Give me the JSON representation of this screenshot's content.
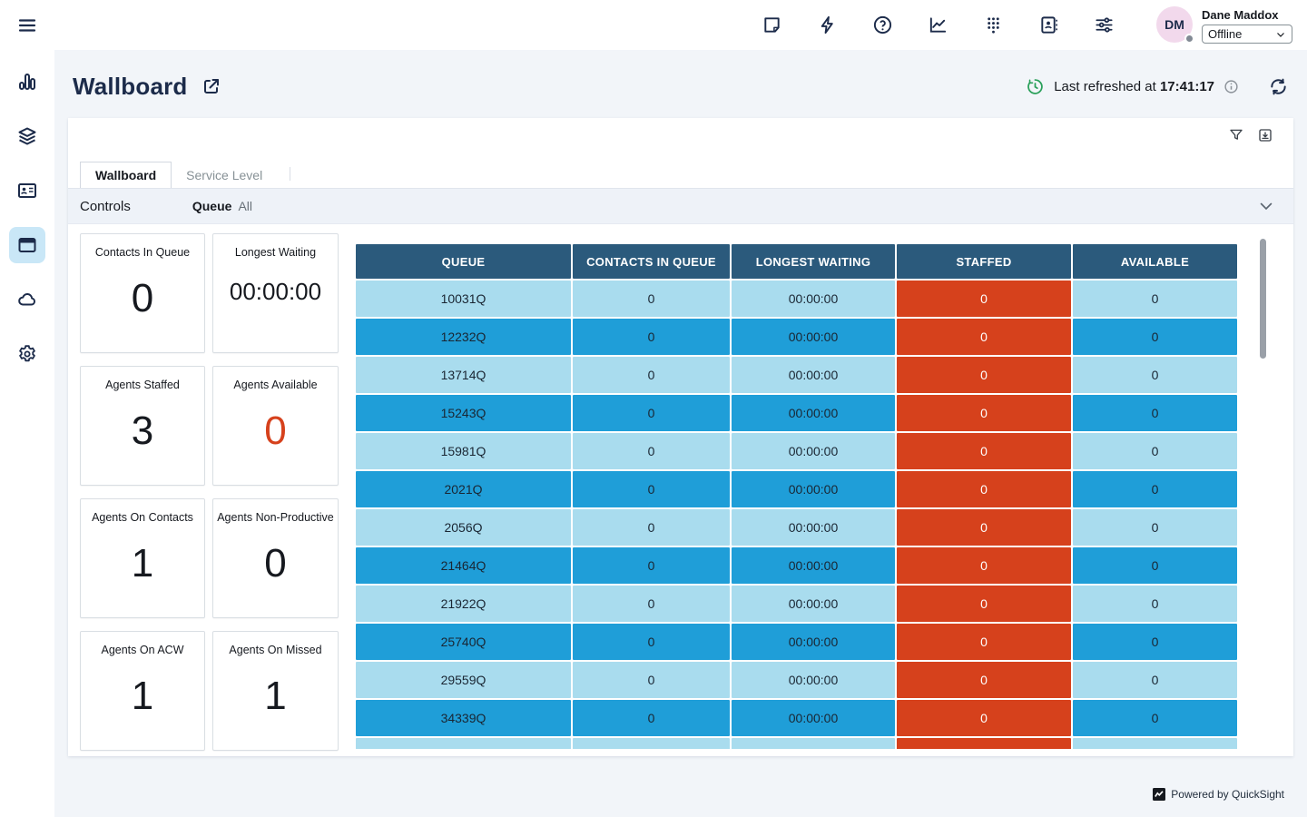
{
  "topbar": {
    "icons": [
      "note-icon",
      "bolt-icon",
      "help-icon",
      "metrics-icon",
      "dialpad-icon",
      "contacts-icon",
      "sliders-icon"
    ],
    "user": {
      "initials": "DM",
      "name": "Dane Maddox",
      "status": "Offline"
    }
  },
  "sidebar": {
    "items": [
      "menu-icon",
      "bar-chart-icon",
      "layers-icon",
      "id-card-icon",
      "window-icon",
      "cloud-icon",
      "gear-icon"
    ],
    "active_item": "window-icon"
  },
  "page": {
    "title": "Wallboard",
    "refresh_label": "Last refreshed at ",
    "refresh_time": "17:41:17"
  },
  "panel": {
    "tabs": [
      {
        "label": "Wallboard",
        "active": true
      },
      {
        "label": "Service Level",
        "active": false
      }
    ],
    "controls_label": "Controls",
    "queue_label": "Queue",
    "queue_value": "All"
  },
  "kpis": [
    {
      "label": "Contacts In Queue",
      "value": "0"
    },
    {
      "label": "Longest Waiting",
      "value": "00:00:00"
    },
    {
      "label": "Agents Staffed",
      "value": "3"
    },
    {
      "label": "Agents Available",
      "value": "0",
      "color": "#d6411c"
    },
    {
      "label": "Agents On Contacts",
      "value": "1"
    },
    {
      "label": "Agents Non-Productive",
      "value": "0"
    },
    {
      "label": "Agents On ACW",
      "value": "1"
    },
    {
      "label": "Agents On Missed",
      "value": "1"
    }
  ],
  "table": {
    "columns": [
      "QUEUE",
      "CONTACTS IN QUEUE",
      "LONGEST WAITING",
      "STAFFED",
      "AVAILABLE"
    ],
    "rows": [
      [
        "10031Q",
        "0",
        "00:00:00",
        "0",
        "0"
      ],
      [
        "12232Q",
        "0",
        "00:00:00",
        "0",
        "0"
      ],
      [
        "13714Q",
        "0",
        "00:00:00",
        "0",
        "0"
      ],
      [
        "15243Q",
        "0",
        "00:00:00",
        "0",
        "0"
      ],
      [
        "15981Q",
        "0",
        "00:00:00",
        "0",
        "0"
      ],
      [
        "2021Q",
        "0",
        "00:00:00",
        "0",
        "0"
      ],
      [
        "2056Q",
        "0",
        "00:00:00",
        "0",
        "0"
      ],
      [
        "21464Q",
        "0",
        "00:00:00",
        "0",
        "0"
      ],
      [
        "21922Q",
        "0",
        "00:00:00",
        "0",
        "0"
      ],
      [
        "25740Q",
        "0",
        "00:00:00",
        "0",
        "0"
      ],
      [
        "29559Q",
        "0",
        "00:00:00",
        "0",
        "0"
      ],
      [
        "34339Q",
        "0",
        "00:00:00",
        "0",
        "0"
      ],
      [
        "",
        "",
        "",
        "",
        ""
      ]
    ]
  },
  "footer": {
    "powered_by": "Powered by QuickSight"
  },
  "colors": {
    "navy": "#1c2b4a",
    "header_blue": "#2b5a7c",
    "row_light": "#a9dcee",
    "row_blue": "#1f9ed8",
    "alert_orange": "#d6411c",
    "refresh_green": "#2aa05a",
    "active_nav_bg": "#c9e7f7"
  }
}
